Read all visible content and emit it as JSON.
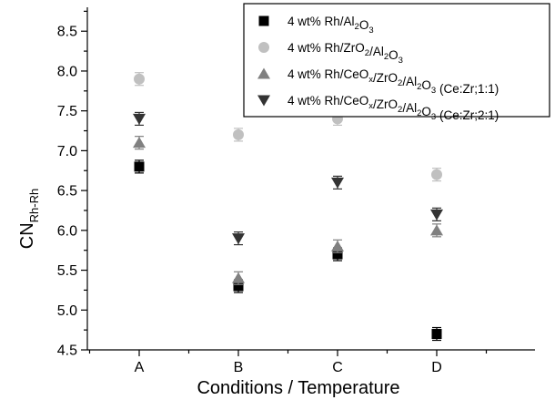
{
  "chart_data": {
    "type": "scatter",
    "categories": [
      "A",
      "B",
      "C",
      "D"
    ],
    "xlabel": "Conditions / Temperature",
    "ylabel": {
      "main": "CN",
      "sub": "Rh-Rh"
    },
    "ylim": [
      4.5,
      8.8
    ],
    "yticks": [
      4.5,
      5.0,
      5.5,
      6.0,
      6.5,
      7.0,
      7.5,
      8.0,
      8.5
    ],
    "grid": false,
    "legend_position": "top-right",
    "series": [
      {
        "name": [
          [
            "4 wt% Rh/Al",
            ""
          ],
          [
            "2",
            "sub"
          ],
          [
            "O",
            ""
          ],
          [
            "3",
            "sub"
          ]
        ],
        "marker": "square",
        "color": "#000000",
        "values": [
          6.8,
          5.3,
          5.7,
          4.7
        ],
        "errors": [
          0.08,
          0.08,
          0.08,
          0.08
        ]
      },
      {
        "name": [
          [
            "4 wt% Rh/ZrO",
            ""
          ],
          [
            "2",
            "sub"
          ],
          [
            "/Al",
            ""
          ],
          [
            "2",
            "sub"
          ],
          [
            "O",
            ""
          ],
          [
            "3",
            "sub"
          ]
        ],
        "marker": "circle",
        "color": "#c0c0c0",
        "values": [
          7.9,
          7.2,
          7.4,
          6.7
        ],
        "errors": [
          0.08,
          0.08,
          0.08,
          0.08
        ]
      },
      {
        "name": [
          [
            "4 wt% Rh/CeO",
            ""
          ],
          [
            "x",
            "sub"
          ],
          [
            "/ZrO",
            ""
          ],
          [
            "2",
            "sub"
          ],
          [
            "/Al",
            ""
          ],
          [
            "2",
            "sub"
          ],
          [
            "O",
            ""
          ],
          [
            "3",
            "sub"
          ],
          [
            " (Ce:Zr;1:1)",
            ""
          ]
        ],
        "marker": "triangle-up",
        "color": "#808080",
        "values": [
          7.1,
          5.4,
          5.8,
          6.0
        ],
        "errors": [
          0.08,
          0.08,
          0.08,
          0.08
        ]
      },
      {
        "name": [
          [
            "4 wt% Rh/CeO",
            ""
          ],
          [
            "x",
            "sub"
          ],
          [
            "/ZrO",
            ""
          ],
          [
            "2",
            "sub"
          ],
          [
            "/Al",
            ""
          ],
          [
            "2",
            "sub"
          ],
          [
            "O",
            ""
          ],
          [
            "3",
            "sub"
          ],
          [
            " (Ce:Zr;2:1)",
            ""
          ]
        ],
        "marker": "triangle-down",
        "color": "#333333",
        "values": [
          7.4,
          5.9,
          6.6,
          6.2
        ],
        "errors": [
          0.08,
          0.08,
          0.08,
          0.08
        ]
      }
    ]
  }
}
